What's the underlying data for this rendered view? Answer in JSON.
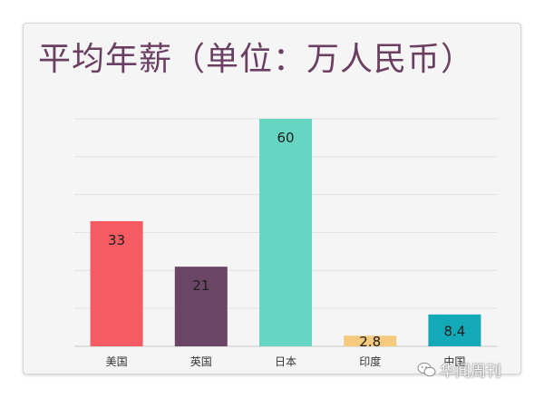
{
  "chart_data": {
    "type": "bar",
    "title": "平均年薪（单位：万人民币）",
    "categories": [
      "美国",
      "英国",
      "日本",
      "印度",
      "中国"
    ],
    "values": [
      33,
      21,
      60,
      2.8,
      8.4
    ],
    "value_labels": [
      "33",
      "21",
      "60",
      "2.8",
      "8.4"
    ],
    "colors": [
      "#f45b62",
      "#6a4565",
      "#66d6c3",
      "#f5ca7e",
      "#13a9b7"
    ],
    "ylim": [
      0,
      60
    ],
    "grid": true,
    "legend": "none"
  },
  "watermark": {
    "text": "华闻周刊",
    "icon": "wechat-icon"
  }
}
